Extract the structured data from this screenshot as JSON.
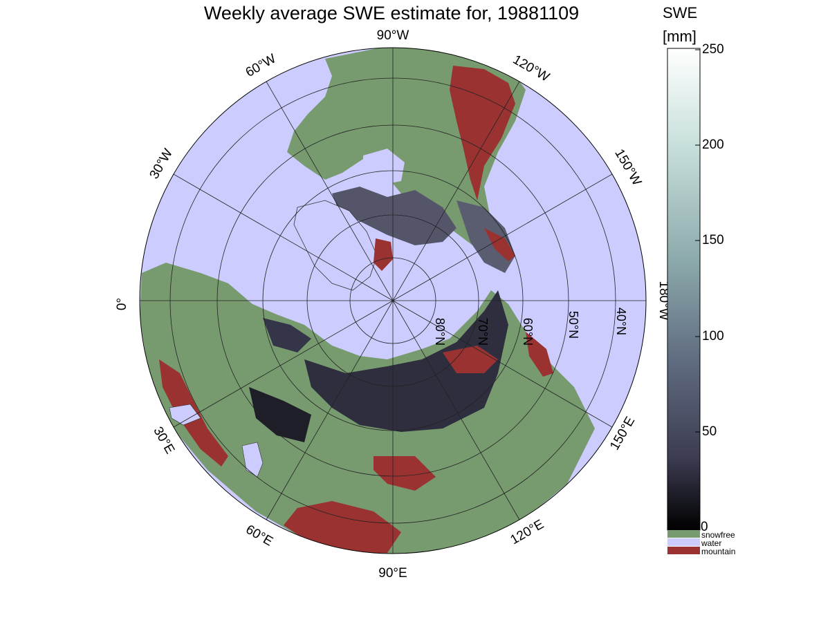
{
  "title": "Weekly average SWE estimate for, 19881109",
  "colorbar": {
    "label": "SWE",
    "unit": "[mm]",
    "ticks": [
      "250",
      "200",
      "150",
      "100",
      "50",
      "0"
    ],
    "gradient": [
      "#ffffff",
      "#c8e0dc",
      "#8aa7a9",
      "#5f6b80",
      "#3c3c52",
      "#000000"
    ]
  },
  "legend": [
    {
      "label": "snowfree",
      "color": "#779a6f"
    },
    {
      "label": "water",
      "color": "#ccccff"
    },
    {
      "label": "mountain",
      "color": "#9a3232"
    }
  ],
  "map": {
    "projection": "North polar stereographic",
    "ocean_color": "#ccccff",
    "land_color": "#779a6f",
    "lat_labels": [
      "80°N",
      "70°N",
      "60°N",
      "50°N",
      "40°N"
    ],
    "lon_labels": [
      "90°W",
      "120°W",
      "150°W",
      "180°W",
      "150°E",
      "120°E",
      "90°E",
      "60°E",
      "30°E",
      "0°",
      "30°W",
      "60°W"
    ]
  }
}
